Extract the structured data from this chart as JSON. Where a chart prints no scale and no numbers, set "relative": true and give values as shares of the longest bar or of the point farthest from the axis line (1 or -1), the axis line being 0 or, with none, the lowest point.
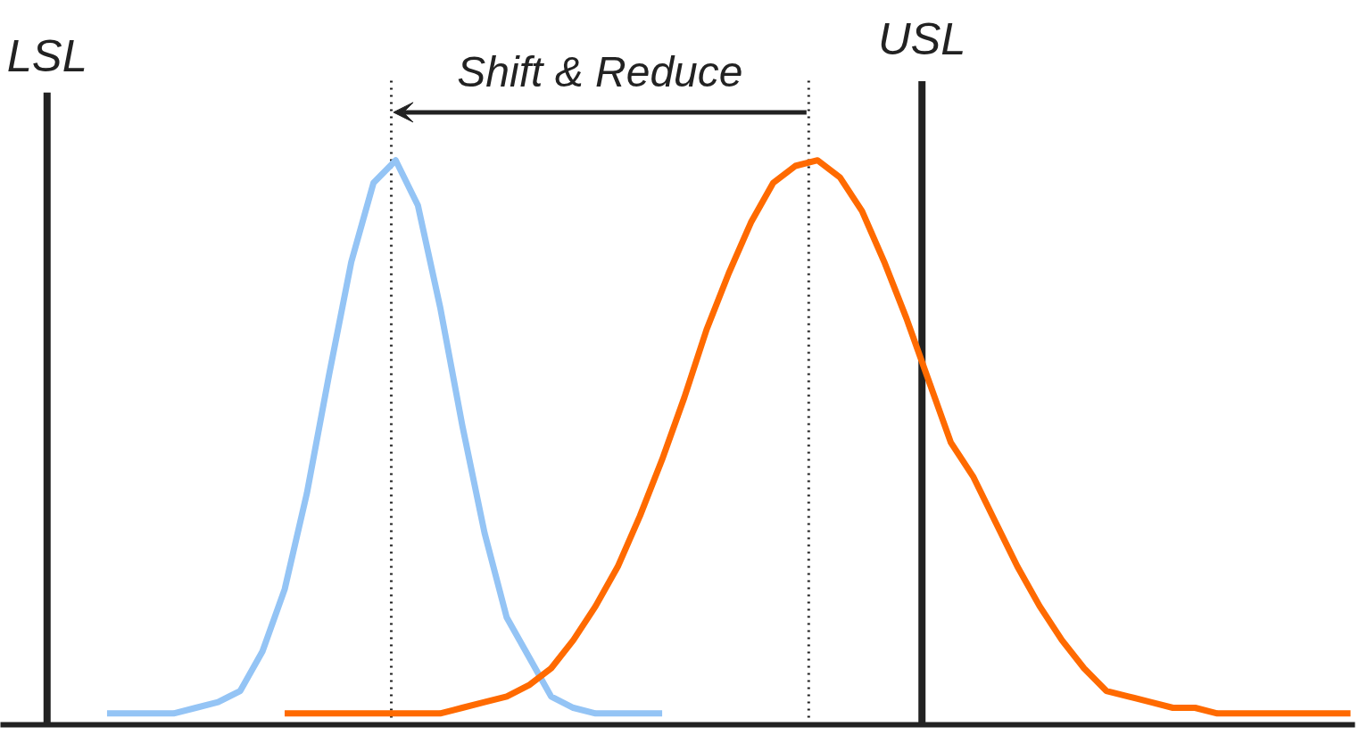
{
  "chart_data": {
    "type": "line",
    "relative": true,
    "grid": false,
    "marker": "none",
    "line_style": "solid",
    "categories": [
      null,
      null,
      null,
      null,
      null,
      null,
      null,
      null,
      null,
      null,
      null,
      null,
      null,
      null,
      null,
      null,
      null,
      null,
      null,
      null,
      null,
      null,
      null,
      null,
      null,
      null,
      null,
      null,
      null,
      null,
      null,
      null,
      null,
      null,
      null,
      null,
      null,
      null,
      null,
      null,
      null,
      null,
      null,
      null,
      null,
      null,
      null,
      null,
      null,
      null,
      null,
      null,
      null,
      null,
      null,
      null,
      null,
      null,
      null,
      null,
      null
    ],
    "series": [
      {
        "color": "#94c4f5",
        "values": [
          null,
          null,
          null,
          null,
          0.02,
          0.02,
          0.02,
          0.02,
          0.03,
          0.04,
          0.06,
          0.13,
          0.24,
          0.41,
          0.62,
          0.82,
          0.96,
          1.0,
          0.92,
          0.74,
          0.53,
          0.34,
          0.19,
          0.12,
          0.05,
          0.03,
          0.02,
          0.02,
          0.02,
          0.02,
          null,
          null,
          null,
          null,
          null,
          null,
          null,
          null,
          null,
          null,
          null,
          null,
          null,
          null,
          null,
          null,
          null,
          null,
          null,
          null,
          null,
          null,
          null,
          null,
          null,
          null,
          null,
          null,
          null,
          null,
          null
        ]
      },
      {
        "color": "#ff6a00",
        "values": [
          null,
          null,
          null,
          null,
          null,
          null,
          null,
          null,
          null,
          null,
          null,
          null,
          0.02,
          0.02,
          0.02,
          0.02,
          0.02,
          0.02,
          0.02,
          0.02,
          0.03,
          0.04,
          0.05,
          0.07,
          0.1,
          0.15,
          0.21,
          0.28,
          0.37,
          0.47,
          0.58,
          0.7,
          0.8,
          0.89,
          0.96,
          0.99,
          1.0,
          0.97,
          0.91,
          0.82,
          0.72,
          0.61,
          0.5,
          0.44,
          0.36,
          0.28,
          0.21,
          0.15,
          0.1,
          0.06,
          0.05,
          0.04,
          0.03,
          0.03,
          0.02,
          0.02,
          0.02,
          0.02,
          0.02,
          0.02,
          0.02
        ]
      }
    ],
    "annotations": [
      "LSL",
      "USL",
      "Shift & Reduce"
    ]
  }
}
